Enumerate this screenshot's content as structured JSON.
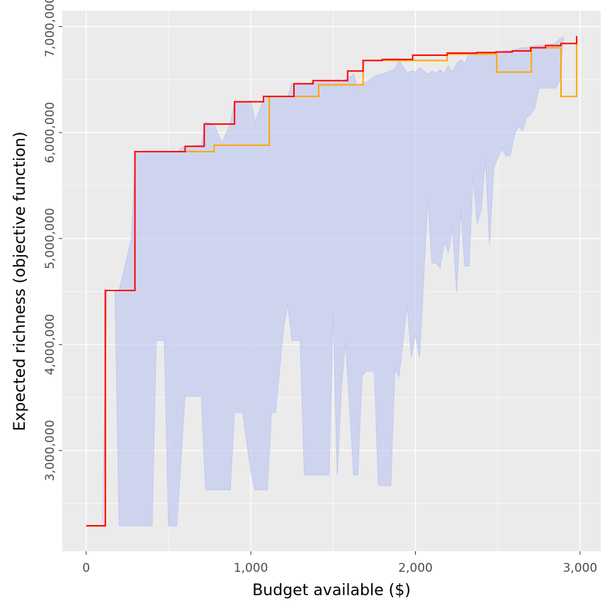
{
  "chart_data": {
    "type": "step",
    "x_label": "Budget available ($)",
    "y_label": "Expected richness (objective function)",
    "xlim": [
      -145,
      3125
    ],
    "ylim": [
      2050000,
      7150000
    ],
    "xticks": [
      0,
      {
        "value": 1000,
        "label": "1,000"
      },
      {
        "value": 2000,
        "label": "2,000"
      },
      {
        "value": 3000,
        "label": "3,000"
      }
    ],
    "yticks": [
      {
        "value": 3000000,
        "label": "3,000,000"
      },
      {
        "value": 4000000,
        "label": "4,000,000"
      },
      {
        "value": 5000000,
        "label": "5,000,000"
      },
      {
        "value": 6000000,
        "label": "6,000,000"
      },
      {
        "value": 7000000,
        "label": "7,000,000"
      }
    ],
    "x_minor_ticks": [
      500,
      1500,
      2500
    ],
    "y_minor_ticks": [
      2500000,
      3500000,
      4500000,
      5500000,
      6500000
    ],
    "grid": true,
    "ribbon": {
      "color": "#c3cbf0",
      "x": [
        0,
        100,
        125,
        175,
        200,
        275,
        300,
        400,
        425,
        475,
        500,
        550,
        600,
        700,
        725,
        775,
        825,
        875,
        900,
        950,
        1000,
        1025,
        1075,
        1100,
        1125,
        1150,
        1200,
        1225,
        1250,
        1300,
        1325,
        1475,
        1500,
        1525,
        1550,
        1575,
        1625,
        1650,
        1675,
        1700,
        1750,
        1775,
        1850,
        1875,
        1900,
        1950,
        1975,
        2000,
        2025,
        2075,
        2100,
        2125,
        2150,
        2175,
        2200,
        2225,
        2250,
        2275,
        2300,
        2325,
        2350,
        2375,
        2400,
        2425,
        2450,
        2475,
        2525,
        2550,
        2575,
        2600,
        2625,
        2650,
        2675,
        2700,
        2725,
        2750,
        2850,
        2875,
        2900
      ],
      "lower": [
        2290000,
        2290000,
        4510000,
        4510000,
        2290000,
        2290000,
        2290000,
        2290000,
        4040000,
        4040000,
        2290000,
        2290000,
        3510000,
        3510000,
        2630000,
        2630000,
        2630000,
        2630000,
        3360000,
        3360000,
        2800000,
        2630000,
        2630000,
        2630000,
        3360000,
        3360000,
        4170000,
        4380000,
        4040000,
        4040000,
        2770000,
        2770000,
        4300000,
        2770000,
        3600000,
        4040000,
        2770000,
        2770000,
        3700000,
        3750000,
        3750000,
        2670000,
        2670000,
        3770000,
        3700000,
        4380000,
        3880000,
        4100000,
        3880000,
        5380000,
        4770000,
        4770000,
        4720000,
        4970000,
        4870000,
        5100000,
        4500000,
        5280000,
        4740000,
        4740000,
        5600000,
        5140000,
        5280000,
        5780000,
        4950000,
        5670000,
        5850000,
        5780000,
        5780000,
        5970000,
        6060000,
        6020000,
        6140000,
        6170000,
        6230000,
        6420000,
        6420000,
        6480000,
        6900000
      ],
      "upper": [
        2290000,
        2290000,
        4510000,
        4510000,
        4510000,
        5000000,
        5820000,
        5820000,
        5820000,
        5820000,
        5820000,
        5820000,
        5870000,
        5880000,
        6100000,
        6080000,
        5900000,
        6080000,
        6280000,
        6280000,
        6300000,
        6100000,
        6300000,
        6340000,
        6340000,
        6340000,
        6340000,
        6340000,
        6460000,
        6460000,
        6460000,
        6480000,
        6470000,
        6500000,
        6460000,
        6500000,
        6550000,
        6420000,
        6460000,
        6470000,
        6530000,
        6540000,
        6580000,
        6600000,
        6680000,
        6560000,
        6580000,
        6570000,
        6610000,
        6550000,
        6580000,
        6560000,
        6590000,
        6560000,
        6630000,
        6570000,
        6650000,
        6690000,
        6650000,
        6740000,
        6740000,
        6750000,
        6750000,
        6750000,
        6760000,
        6760000,
        6760000,
        6770000,
        6770000,
        6780000,
        6790000,
        6800000,
        6800000,
        6810000,
        6820000,
        6820000,
        6840000,
        6880000,
        6900000
      ]
    },
    "series": [
      {
        "color": "#ffa500",
        "x": [
          0,
          116,
          296,
          777,
          1112,
          1412,
          1682,
          2193,
          2494,
          2704,
          2884,
          2979
        ],
        "values": [
          2290000,
          4510000,
          5820000,
          5880000,
          6340000,
          6450000,
          6680000,
          6740000,
          6570000,
          6800000,
          6340000,
          6850000
        ]
      },
      {
        "color": "#ff0000",
        "x": [
          0,
          116,
          296,
          601,
          717,
          901,
          1077,
          1262,
          1378,
          1588,
          1682,
          1798,
          1983,
          2193,
          2373,
          2489,
          2588,
          2700,
          2790,
          2884,
          2979
        ],
        "values": [
          2290000,
          4510000,
          5820000,
          5870000,
          6080000,
          6290000,
          6340000,
          6460000,
          6490000,
          6580000,
          6680000,
          6690000,
          6730000,
          6750000,
          6755000,
          6760000,
          6770000,
          6800000,
          6820000,
          6840000,
          6910000
        ]
      }
    ]
  }
}
